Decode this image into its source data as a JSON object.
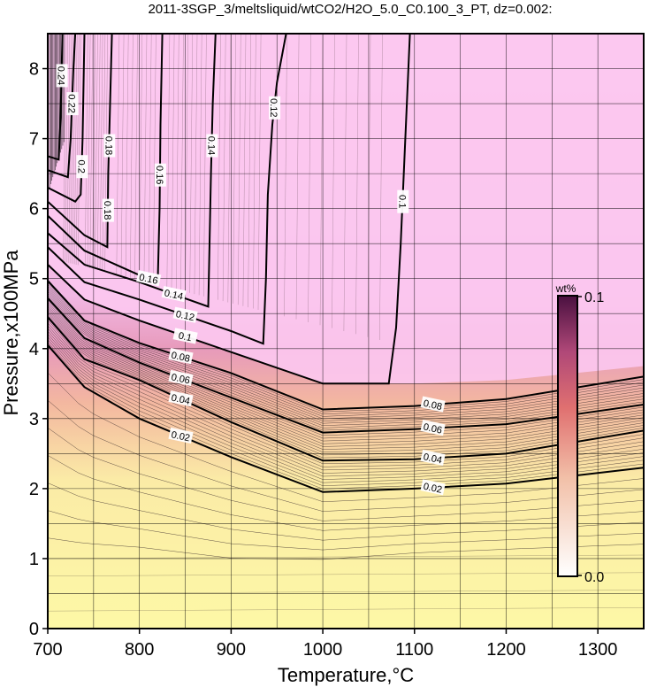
{
  "chart_data": {
    "type": "contour",
    "title": "2011-3SGP_3/meltsliquid/wtCO2/H2O_5.0_C0.100_3_PT, dz=0.002:",
    "xlabel": "Temperature,°C",
    "ylabel": "Pressure,x100MPa",
    "xlim": [
      700,
      1350
    ],
    "ylim": [
      0,
      8.5
    ],
    "xticks": [
      "700",
      "800",
      "900",
      "1000",
      "1100",
      "1200",
      "1300"
    ],
    "yticks": [
      "0",
      "1",
      "2",
      "3",
      "4",
      "5",
      "6",
      "7",
      "8"
    ],
    "grid": true,
    "contour_interval": 0.002,
    "labeled_contours": [
      {
        "level": "0.02",
        "points": [
          [
            700,
            4.05
          ],
          [
            740,
            3.45
          ],
          [
            800,
            3.0
          ],
          [
            900,
            2.45
          ],
          [
            1000,
            1.95
          ],
          [
            1100,
            2.0
          ],
          [
            1200,
            2.07
          ],
          [
            1350,
            2.3
          ]
        ]
      },
      {
        "level": "0.04",
        "points": [
          [
            700,
            4.45
          ],
          [
            740,
            3.85
          ],
          [
            800,
            3.55
          ],
          [
            900,
            2.95
          ],
          [
            1000,
            2.4
          ],
          [
            1100,
            2.42
          ],
          [
            1200,
            2.5
          ],
          [
            1350,
            2.83
          ]
        ]
      },
      {
        "level": "0.06",
        "points": [
          [
            700,
            4.72
          ],
          [
            740,
            4.15
          ],
          [
            800,
            3.8
          ],
          [
            900,
            3.3
          ],
          [
            1000,
            2.8
          ],
          [
            1100,
            2.85
          ],
          [
            1200,
            2.92
          ],
          [
            1350,
            3.2
          ]
        ]
      },
      {
        "level": "0.08",
        "points": [
          [
            700,
            4.97
          ],
          [
            740,
            4.4
          ],
          [
            800,
            4.08
          ],
          [
            900,
            3.65
          ],
          [
            1000,
            3.13
          ],
          [
            1100,
            3.18
          ],
          [
            1200,
            3.28
          ],
          [
            1350,
            3.6
          ]
        ]
      },
      {
        "level": "0.1",
        "points": [
          [
            700,
            5.2
          ],
          [
            740,
            4.7
          ],
          [
            800,
            4.4
          ],
          [
            900,
            3.95
          ],
          [
            1000,
            3.5
          ],
          [
            1072,
            3.5
          ],
          [
            1080,
            4.3
          ],
          [
            1085,
            5.5
          ],
          [
            1090,
            7.0
          ],
          [
            1095,
            8.5
          ]
        ]
      },
      {
        "level": "0.12",
        "points": [
          [
            700,
            5.45
          ],
          [
            740,
            4.95
          ],
          [
            800,
            4.7
          ],
          [
            900,
            4.25
          ],
          [
            935,
            4.07
          ],
          [
            938,
            5.0
          ],
          [
            940,
            6.2
          ],
          [
            945,
            7.2
          ],
          [
            950,
            7.8
          ],
          [
            960,
            8.5
          ]
        ]
      },
      {
        "level": "0.14",
        "points": [
          [
            700,
            5.65
          ],
          [
            740,
            5.2
          ],
          [
            800,
            4.95
          ],
          [
            875,
            4.6
          ],
          [
            876,
            5.2
          ],
          [
            878,
            6.5
          ],
          [
            880,
            7.5
          ],
          [
            883,
            8.5
          ]
        ]
      },
      {
        "level": "0.16",
        "points": [
          [
            700,
            5.9
          ],
          [
            740,
            5.4
          ],
          [
            800,
            5.05
          ],
          [
            820,
            4.95
          ],
          [
            822,
            6.0
          ],
          [
            823,
            7.2
          ],
          [
            825,
            8.5
          ]
        ]
      },
      {
        "level": "0.18",
        "points": [
          [
            700,
            6.1
          ],
          [
            740,
            5.62
          ],
          [
            765,
            5.45
          ],
          [
            766,
            6.5
          ],
          [
            768,
            7.5
          ],
          [
            770,
            8.5
          ]
        ]
      },
      {
        "level": "0.2",
        "points": [
          [
            700,
            6.3
          ],
          [
            730,
            6.1
          ],
          [
            736,
            6.2
          ],
          [
            738,
            7.0
          ],
          [
            740,
            8.5
          ]
        ]
      },
      {
        "level": "0.22",
        "points": [
          [
            700,
            6.55
          ],
          [
            722,
            6.45
          ],
          [
            725,
            7.0
          ],
          [
            728,
            8.0
          ],
          [
            730,
            8.5
          ]
        ]
      },
      {
        "level": "0.24",
        "points": [
          [
            700,
            6.75
          ],
          [
            712,
            6.7
          ],
          [
            714,
            7.3
          ],
          [
            716,
            8.5
          ]
        ]
      }
    ],
    "colorbar": {
      "unit": "wt%",
      "min_label": "0.0",
      "max_label": "0.1",
      "min": 0.0,
      "max": 0.1
    },
    "colors": {
      "low": "#ffffc0",
      "mid": "#e87070",
      "high": "#501850",
      "saturated": "#ffc8ee"
    }
  }
}
